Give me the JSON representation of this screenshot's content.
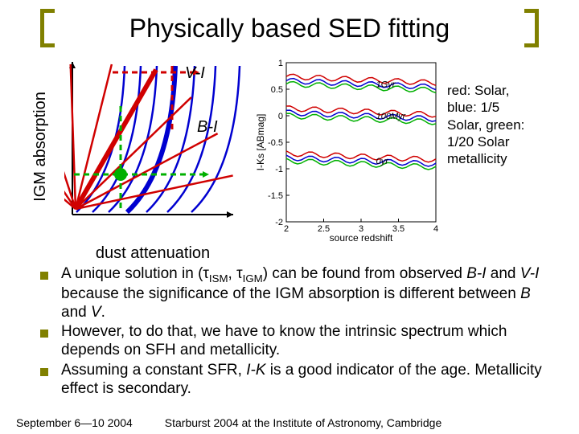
{
  "title": "Physically based SED fitting",
  "left_diagram": {
    "ylabel": "IGM absorption",
    "xlabel": "dust attenuation",
    "label_VI": "V-I",
    "label_BI": "B-I",
    "axis_color": "#000000",
    "blue_curves": {
      "color": "#0000d0",
      "width_thin": 2.5,
      "width_thick": 6,
      "xs_start": [
        15,
        35,
        55,
        78,
        102,
        128,
        158
      ],
      "thick_index": 3
    },
    "red_curves": {
      "color": "#d00000",
      "width_thin": 2.5,
      "width_thick": 6,
      "angles": [
        12,
        28,
        44,
        60,
        76,
        92,
        108,
        124,
        140
      ],
      "origin_y": 188,
      "thick_index": 3
    },
    "green_dash": {
      "color": "#00b000",
      "width": 3,
      "dash": "7,5",
      "v_x": 70,
      "h_y": 145,
      "dot_x": 70,
      "dot_y": 145,
      "dot_r": 8
    },
    "red_dash": {
      "color": "#d00000",
      "width": 3,
      "dash": "7,5",
      "v_x": 134,
      "h_y": 18
    }
  },
  "right_chart": {
    "xlabel": "source redshift",
    "ylabel": "I-Ks [ABmag]",
    "xlim": [
      2,
      4
    ],
    "xticks": [
      2,
      2.5,
      3,
      3.5,
      4
    ],
    "ylim": [
      -2,
      1
    ],
    "yticks": [
      -2,
      -1.5,
      -1,
      -0.5,
      0,
      0.5,
      1
    ],
    "panel_annotations": [
      "1Gyr",
      "100Myr",
      "0yr"
    ],
    "series": [
      {
        "color": "#d00000",
        "offset": 0.08
      },
      {
        "color": "#0000d0",
        "offset": 0.0
      },
      {
        "color": "#00b000",
        "offset": -0.06
      }
    ],
    "panels_baseline": [
      0.6,
      0.0,
      -0.85
    ],
    "axis_color": "#000000",
    "font_size": 11
  },
  "legend": "red: Solar, blue: 1/5 Solar, green: 1/20 Solar metallicity",
  "bullets": [
    "A unique solution in (τ<sub>ISM</sub>, τ<sub>IGM</sub>) can be found from observed <span class='ital'>B-I</span> and <span class='ital'>V-I</span> because the significance of the IGM absorption is different between <span class='ital'>B</span> and <span class='ital'>V</span>.",
    "However, to do that, we have to know the intrinsic spectrum which depends on SFH and metallicity.",
    "Assuming a constant SFR, <span class='ital'>I-K</span> is a good indicator of the age. Metallicity effect is secondary."
  ],
  "footer_left": "September 6—10 2004",
  "footer_right": "Starburst 2004 at the Institute of Astronomy, Cambridge"
}
